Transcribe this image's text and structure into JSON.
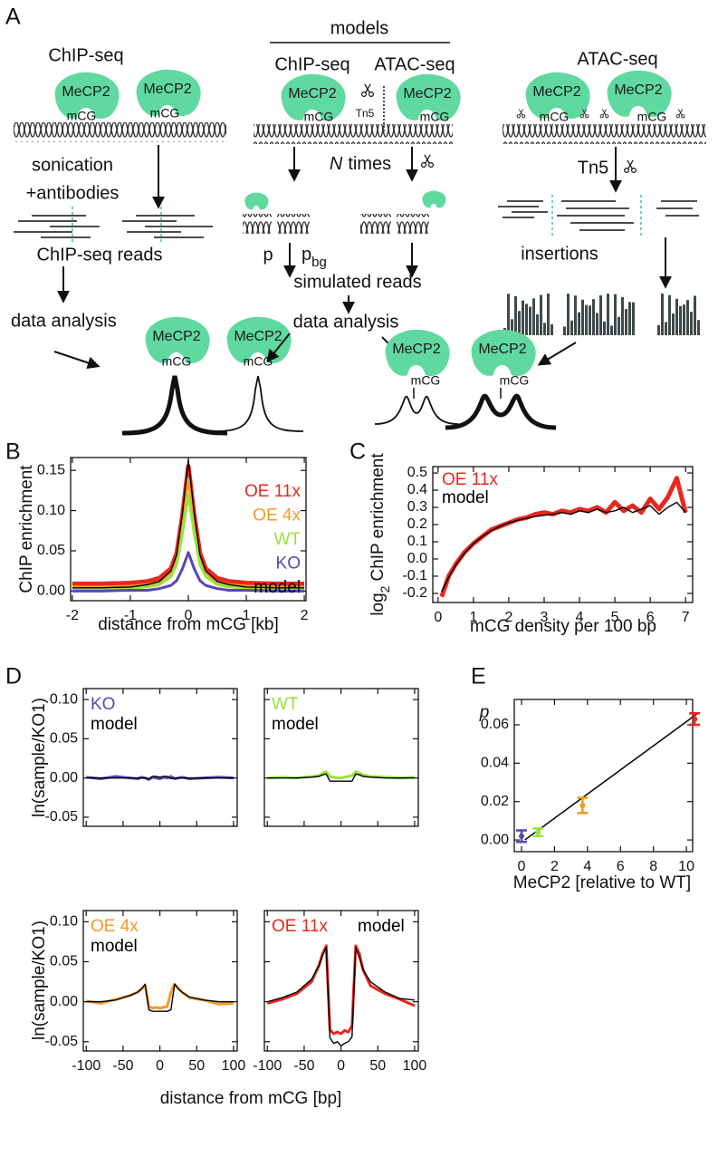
{
  "panel_labels": [
    "A",
    "B",
    "C",
    "D",
    "E"
  ],
  "diagram": {
    "chipseq": "ChIP-seq",
    "atacseq": "ATAC-seq",
    "mecp2": "MeCP2",
    "mcg": "mCG",
    "sonication": "sonication",
    "antibodies": "+antibodies",
    "chip_reads": "ChIP-seq reads",
    "data_analysis": "data analysis",
    "models": "models",
    "tn5": "Tn5",
    "n": "N",
    "times": "times",
    "p": "p",
    "bg": "bg",
    "simulated": "simulated reads",
    "insertions": "insertions"
  },
  "chart_data": [
    {
      "type": "line",
      "xlabel": "distance from mCG [kb]",
      "ylabel": "ChIP enrichment",
      "x": [
        -2,
        -1.5,
        -1,
        -0.7,
        -0.5,
        -0.3,
        -0.2,
        -0.1,
        0,
        0.1,
        0.2,
        0.3,
        0.5,
        0.7,
        1,
        1.5,
        2
      ],
      "series": [
        {
          "name": "OE 11x",
          "color": "#e8281e",
          "values": [
            0.009,
            0.009,
            0.01,
            0.012,
            0.016,
            0.028,
            0.047,
            0.095,
            0.155,
            0.095,
            0.047,
            0.028,
            0.016,
            0.012,
            0.01,
            0.009,
            0.009
          ]
        },
        {
          "name": "OE 4x",
          "color": "#f39a26",
          "values": [
            0.005,
            0.005,
            0.006,
            0.008,
            0.011,
            0.023,
            0.04,
            0.084,
            0.14,
            0.084,
            0.04,
            0.023,
            0.011,
            0.008,
            0.006,
            0.005,
            0.005
          ]
        },
        {
          "name": "WT",
          "color": "#9ae23d",
          "values": [
            0.002,
            0.003,
            0.004,
            0.005,
            0.008,
            0.018,
            0.033,
            0.072,
            0.12,
            0.072,
            0.033,
            0.018,
            0.008,
            0.005,
            0.004,
            0.003,
            0.002
          ]
        },
        {
          "name": "KO",
          "color": "#5a45b5",
          "values": [
            0,
            0,
            0.001,
            0.001,
            0.003,
            0.007,
            0.013,
            0.028,
            0.048,
            0.028,
            0.013,
            0.007,
            0.003,
            0.001,
            0.001,
            0,
            0
          ]
        },
        {
          "name": "model",
          "color": "#000000",
          "values": [
            0.004,
            0.004,
            0.005,
            0.008,
            0.012,
            0.025,
            0.045,
            0.097,
            0.163,
            0.097,
            0.045,
            0.025,
            0.012,
            0.008,
            0.005,
            0.004,
            0.004
          ]
        }
      ],
      "xlim": [
        -2.03,
        2.03
      ],
      "xticks": [
        -2,
        -1,
        0,
        1,
        2
      ],
      "ylim": [
        -0.012,
        0.166
      ],
      "yticks": [
        {
          "value": 0,
          "label": "0.00"
        },
        {
          "value": 0.05,
          "label": "0.05"
        },
        {
          "value": 0.1,
          "label": "0.10"
        },
        {
          "value": 0.15,
          "label": "0.15"
        }
      ]
    },
    {
      "type": "line",
      "xlabel": "mCG density per 100 bp",
      "ylabel_base": "log",
      "ylabel_sub": "2",
      "ylabel": "ChIP enrichment",
      "x": [
        0.1,
        0.3,
        0.5,
        0.75,
        1,
        1.25,
        1.5,
        1.75,
        2,
        2.25,
        2.5,
        2.75,
        3,
        3.25,
        3.5,
        3.75,
        4,
        4.25,
        4.5,
        4.75,
        5,
        5.25,
        5.5,
        5.75,
        6,
        6.25,
        6.5,
        6.75,
        7
      ],
      "series": [
        {
          "name": "OE 11x",
          "color": "#e8281e",
          "values": [
            -0.22,
            -0.1,
            -0.03,
            0.04,
            0.09,
            0.13,
            0.17,
            0.19,
            0.21,
            0.23,
            0.24,
            0.26,
            0.27,
            0.26,
            0.28,
            0.27,
            0.29,
            0.28,
            0.3,
            0.27,
            0.33,
            0.28,
            0.31,
            0.27,
            0.35,
            0.29,
            0.36,
            0.47,
            0.27
          ]
        },
        {
          "name": "model",
          "color": "#000000",
          "values": [
            -0.19,
            -0.105,
            -0.035,
            0.034,
            0.089,
            0.131,
            0.164,
            0.19,
            0.21,
            0.225,
            0.237,
            0.247,
            0.254,
            0.26,
            0.27,
            0.26,
            0.28,
            0.27,
            0.29,
            0.27,
            0.28,
            0.3,
            0.27,
            0.29,
            0.31,
            0.26,
            0.3,
            0.33,
            0.27
          ]
        }
      ],
      "xlim": [
        -0.15,
        7.2
      ],
      "xticks": [
        0,
        1,
        2,
        3,
        4,
        5,
        6,
        7
      ],
      "ylim": [
        -0.253,
        0.537
      ],
      "yticks": [
        -0.2,
        -0.1,
        {
          "value": 0,
          "label": "0.0"
        },
        0.1,
        0.2,
        0.3,
        0.4,
        0.5
      ]
    },
    {
      "type": "line",
      "ylabel": "ln(sample/KO1)",
      "x": [
        -100,
        -80,
        -60,
        -40,
        -30,
        -25,
        -20,
        -15,
        -10,
        -5,
        0,
        5,
        10,
        15,
        20,
        25,
        30,
        40,
        60,
        80,
        100
      ],
      "series": [
        {
          "name": "KO",
          "color": "#5a45b5",
          "values": [
            0.001,
            -0.001,
            0.002,
            0,
            -0.001,
            0.001,
            0,
            -0.002,
            0.001,
            0,
            -0.001,
            0.001,
            0,
            0.002,
            -0.001,
            0,
            0.001,
            -0.001,
            0,
            0.001,
            0
          ]
        },
        {
          "name": "model",
          "color": "#000000",
          "values": [
            0,
            0,
            0,
            0,
            0,
            0,
            0,
            -0.001,
            0.002,
            0.002,
            0.001,
            0.002,
            0.002,
            -0.001,
            0,
            0,
            0,
            0,
            0,
            0,
            0
          ]
        }
      ],
      "xlim": [
        -104,
        105
      ],
      "xticks": [
        -100,
        -50,
        0,
        50,
        100
      ],
      "ylim": [
        -0.0616,
        0.114
      ],
      "yticks": [
        {
          "value": -0.05,
          "label": "-0.05"
        },
        {
          "value": 0,
          "label": "0.00"
        },
        {
          "value": 0.05,
          "label": "0.05"
        },
        {
          "value": 0.1,
          "label": "0.10"
        }
      ]
    },
    {
      "type": "line",
      "x": [
        -100,
        -80,
        -60,
        -40,
        -30,
        -25,
        -20,
        -15,
        -10,
        -5,
        0,
        5,
        10,
        15,
        20,
        25,
        30,
        40,
        60,
        80,
        100
      ],
      "series": [
        {
          "name": "WT",
          "color": "#9ae23d",
          "values": [
            0,
            0.001,
            0,
            0.002,
            0.003,
            0.006,
            0.008,
            0.002,
            0.001,
            0,
            0,
            0.001,
            0.002,
            0.003,
            0.008,
            0.006,
            0.004,
            0.002,
            0.001,
            0,
            0.001
          ]
        },
        {
          "name": "model",
          "color": "#000000",
          "values": [
            0,
            0,
            0,
            0.001,
            0.002,
            0.004,
            0.005,
            -0.004,
            -0.004,
            -0.004,
            -0.004,
            -0.004,
            -0.004,
            -0.004,
            0.005,
            0.004,
            0.002,
            0.001,
            0,
            0,
            0
          ]
        }
      ],
      "xlim": [
        -104,
        105
      ],
      "xticks": [
        -100,
        -50,
        0,
        50,
        100
      ],
      "ylim": [
        -0.0616,
        0.114
      ],
      "yticks": [
        {
          "value": -0.05,
          "label": "-0.05"
        },
        {
          "value": 0,
          "label": "0.00"
        },
        {
          "value": 0.05,
          "label": "0.05"
        },
        {
          "value": 0.1,
          "label": "0.10"
        }
      ]
    },
    {
      "type": "line",
      "xlabel": "distance from mCG [bp]",
      "ylabel": "ln(sample/KO1)",
      "x": [
        -100,
        -80,
        -60,
        -40,
        -30,
        -25,
        -20,
        -15,
        -10,
        -5,
        0,
        5,
        10,
        15,
        20,
        25,
        30,
        40,
        60,
        80,
        100
      ],
      "series": [
        {
          "name": "OE 4x",
          "color": "#f39a26",
          "values": [
            0.001,
            -0.002,
            0.003,
            0.008,
            0.012,
            0.016,
            0.02,
            -0.006,
            -0.008,
            -0.007,
            -0.008,
            -0.007,
            -0.006,
            0.012,
            0.022,
            0.017,
            0.012,
            0.005,
            0.002,
            -0.003,
            -0.002
          ]
        },
        {
          "name": "model",
          "color": "#000000",
          "values": [
            0,
            0,
            0.002,
            0.008,
            0.012,
            0.016,
            0.022,
            -0.01,
            -0.012,
            -0.012,
            -0.012,
            -0.012,
            -0.012,
            -0.01,
            0.022,
            0.016,
            0.012,
            0.006,
            0.002,
            0,
            0
          ]
        }
      ],
      "xlim": [
        -104,
        105
      ],
      "xticks": [
        -100,
        -50,
        0,
        50,
        100
      ],
      "ylim": [
        -0.0616,
        0.114
      ],
      "yticks": [
        {
          "value": -0.05,
          "label": "-0.05"
        },
        {
          "value": 0,
          "label": "0.00"
        },
        {
          "value": 0.05,
          "label": "0.05"
        },
        {
          "value": 0.1,
          "label": "0.10"
        }
      ]
    },
    {
      "type": "line",
      "x": [
        -100,
        -80,
        -60,
        -40,
        -30,
        -25,
        -20,
        -15,
        -10,
        -5,
        0,
        5,
        10,
        15,
        20,
        25,
        30,
        40,
        60,
        80,
        100
      ],
      "series": [
        {
          "name": "OE 11x",
          "color": "#e8281e",
          "values": [
            -0.002,
            0.003,
            0.01,
            0.025,
            0.045,
            0.06,
            0.07,
            -0.035,
            -0.04,
            -0.038,
            -0.04,
            -0.036,
            -0.038,
            -0.03,
            0.07,
            0.06,
            0.04,
            0.02,
            0.01,
            0.003,
            -0.005
          ]
        },
        {
          "name": "model",
          "color": "#000000",
          "values": [
            0,
            0.005,
            0.012,
            0.028,
            0.045,
            0.058,
            0.068,
            -0.045,
            -0.052,
            -0.05,
            -0.055,
            -0.052,
            -0.05,
            -0.044,
            0.068,
            0.055,
            0.04,
            0.025,
            0.012,
            0.004,
            0.002
          ]
        }
      ],
      "xlim": [
        -104,
        105
      ],
      "xticks": [
        -100,
        -50,
        0,
        50,
        100
      ],
      "ylim": [
        -0.0616,
        0.114
      ],
      "yticks": [
        {
          "value": -0.05,
          "label": "-0.05"
        },
        {
          "value": 0,
          "label": "0.00"
        },
        {
          "value": 0.05,
          "label": "0.05"
        },
        {
          "value": 0.1,
          "label": "0.10"
        }
      ]
    },
    {
      "type": "scatter",
      "xlabel": "MeCP2 [relative to WT]",
      "ylabel": "p",
      "x": [
        0,
        1,
        3.7,
        10.5
      ],
      "values": [
        0.002,
        0.004,
        0.018,
        0.063
      ],
      "errors": [
        0.003,
        0.002,
        0.004,
        0.003
      ],
      "colors": [
        "#5a45b5",
        "#9ae23d",
        "#f39a26",
        "#e8281e"
      ],
      "fit": {
        "x": [
          0.2,
          10.7
        ],
        "values": [
          0,
          0.066
        ],
        "color": "#000000"
      },
      "xlim": [
        -0.44,
        10.38
      ],
      "xticks": [
        0,
        2,
        4,
        6,
        8,
        10
      ],
      "ylim": [
        -0.0061,
        0.0732
      ],
      "yticks": [
        {
          "value": 0,
          "label": "0.00"
        },
        {
          "value": 0.02,
          "label": "0.02"
        },
        {
          "value": 0.04,
          "label": "0.04"
        },
        {
          "value": 0.06,
          "label": "0.06"
        }
      ]
    }
  ]
}
